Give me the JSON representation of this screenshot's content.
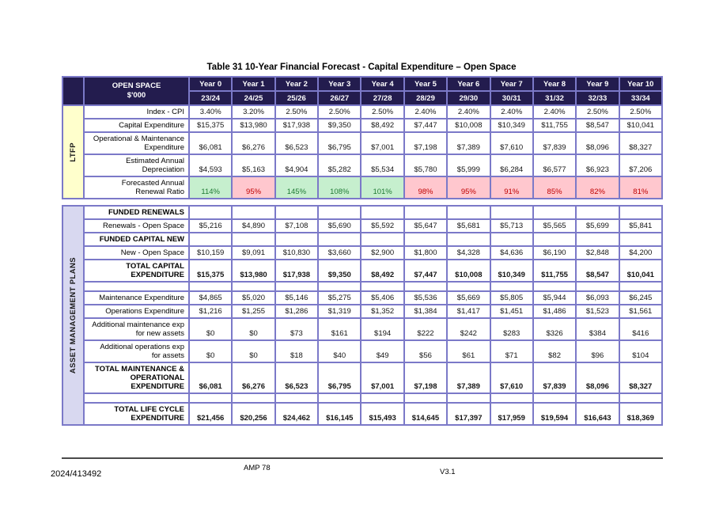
{
  "title": "Table 31 10-Year Financial Forecast - Capital Expenditure – Open Space",
  "colors": {
    "header_bg": "#231C4E",
    "grid_border": "#7B79C8",
    "ltfp_side_bg": "#FFFFCC",
    "amp_side_bg": "#D8D8F0",
    "ratio_good_bg": "#C6EFCE",
    "ratio_good_text": "#1F7A33",
    "ratio_bad_bg": "#FFC7CE",
    "ratio_bad_text": "#C00000"
  },
  "header": {
    "group_label": "OPEN SPACE\n$'000",
    "years": [
      "Year 0",
      "Year 1",
      "Year 2",
      "Year 3",
      "Year 4",
      "Year 5",
      "Year 6",
      "Year 7",
      "Year 8",
      "Year 9",
      "Year 10"
    ],
    "fiscal_years": [
      "23/24",
      "24/25",
      "25/26",
      "26/27",
      "27/28",
      "28/29",
      "29/30",
      "30/31",
      "31/32",
      "32/33",
      "33/34"
    ]
  },
  "ltfp": {
    "side_label": "LTFP",
    "rows": [
      {
        "style": "data",
        "label": "Index - CPI",
        "values": [
          "3.40%",
          "3.20%",
          "2.50%",
          "2.50%",
          "2.50%",
          "2.40%",
          "2.40%",
          "2.40%",
          "2.40%",
          "2.50%",
          "2.50%"
        ]
      },
      {
        "style": "data",
        "label": "Capital Expenditure",
        "values": [
          "$15,375",
          "$13,980",
          "$17,938",
          "$9,350",
          "$8,492",
          "$7,447",
          "$10,008",
          "$10,349",
          "$11,755",
          "$8,547",
          "$10,041"
        ]
      },
      {
        "style": "data",
        "label": "Operational & Maintenance\nExpenditure",
        "values": [
          "$6,081",
          "$6,276",
          "$6,523",
          "$6,795",
          "$7,001",
          "$7,198",
          "$7,389",
          "$7,610",
          "$7,839",
          "$8,096",
          "$8,327"
        ]
      },
      {
        "style": "data",
        "label": "Estimated Annual\nDepreciation",
        "values": [
          "$4,593",
          "$5,163",
          "$4,904",
          "$5,282",
          "$5,534",
          "$5,780",
          "$5,999",
          "$6,284",
          "$6,577",
          "$6,923",
          "$7,206"
        ]
      },
      {
        "style": "data",
        "label": "Forecasted Annual\nRenewal Ratio",
        "values": [
          "114%",
          "95%",
          "145%",
          "108%",
          "101%",
          "98%",
          "95%",
          "91%",
          "85%",
          "82%",
          "81%"
        ],
        "status": [
          "good",
          "bad",
          "good",
          "good",
          "good",
          "bad",
          "bad",
          "bad",
          "bad",
          "bad",
          "bad"
        ]
      }
    ]
  },
  "amp": {
    "side_label": "ASSET MANAGEMENT PLANS",
    "rows": [
      {
        "style": "section",
        "label": "FUNDED RENEWALS",
        "values": []
      },
      {
        "style": "data",
        "label": "Renewals - Open Space",
        "values": [
          "$5,216",
          "$4,890",
          "$7,108",
          "$5,690",
          "$5,592",
          "$5,647",
          "$5,681",
          "$5,713",
          "$5,565",
          "$5,699",
          "$5,841"
        ]
      },
      {
        "style": "section",
        "label": "FUNDED CAPITAL NEW",
        "values": []
      },
      {
        "style": "data",
        "label": "New - Open Space",
        "values": [
          "$10,159",
          "$9,091",
          "$10,830",
          "$3,660",
          "$2,900",
          "$1,800",
          "$4,328",
          "$4,636",
          "$6,190",
          "$2,848",
          "$4,200"
        ]
      },
      {
        "style": "total",
        "label": "TOTAL CAPITAL\nEXPENDITURE",
        "values": [
          "$15,375",
          "$13,980",
          "$17,938",
          "$9,350",
          "$8,492",
          "$7,447",
          "$10,008",
          "$10,349",
          "$11,755",
          "$8,547",
          "$10,041"
        ]
      },
      {
        "style": "spacer",
        "label": "",
        "values": []
      },
      {
        "style": "data",
        "label": "Maintenance Expenditure",
        "values": [
          "$4,865",
          "$5,020",
          "$5,146",
          "$5,275",
          "$5,406",
          "$5,536",
          "$5,669",
          "$5,805",
          "$5,944",
          "$6,093",
          "$6,245"
        ]
      },
      {
        "style": "data",
        "label": "Operations Expenditure",
        "values": [
          "$1,216",
          "$1,255",
          "$1,286",
          "$1,319",
          "$1,352",
          "$1,384",
          "$1,417",
          "$1,451",
          "$1,486",
          "$1,523",
          "$1,561"
        ]
      },
      {
        "style": "data",
        "label": "Additional maintenance exp\nfor new assets",
        "values": [
          "$0",
          "$0",
          "$73",
          "$161",
          "$194",
          "$222",
          "$242",
          "$283",
          "$326",
          "$384",
          "$416"
        ]
      },
      {
        "style": "data",
        "label": "Additional operations exp\nfor assets",
        "values": [
          "$0",
          "$0",
          "$18",
          "$40",
          "$49",
          "$56",
          "$61",
          "$71",
          "$82",
          "$96",
          "$104"
        ]
      },
      {
        "style": "total",
        "label": "TOTAL MAINTENANCE &\nOPERATIONAL\nEXPENDITURE",
        "values": [
          "$6,081",
          "$6,276",
          "$6,523",
          "$6,795",
          "$7,001",
          "$7,198",
          "$7,389",
          "$7,610",
          "$7,839",
          "$8,096",
          "$8,327"
        ]
      },
      {
        "style": "spacer",
        "label": "",
        "values": []
      },
      {
        "style": "total",
        "label": "TOTAL LIFE CYCLE\nEXPENDITURE",
        "values": [
          "$21,456",
          "$20,256",
          "$24,462",
          "$16,145",
          "$15,493",
          "$14,645",
          "$17,397",
          "$17,959",
          "$19,594",
          "$16,643",
          "$18,369"
        ]
      }
    ]
  },
  "footer": {
    "doc_number": "2024/413492",
    "doc_title": "AMP 78",
    "version": "V3.1"
  }
}
